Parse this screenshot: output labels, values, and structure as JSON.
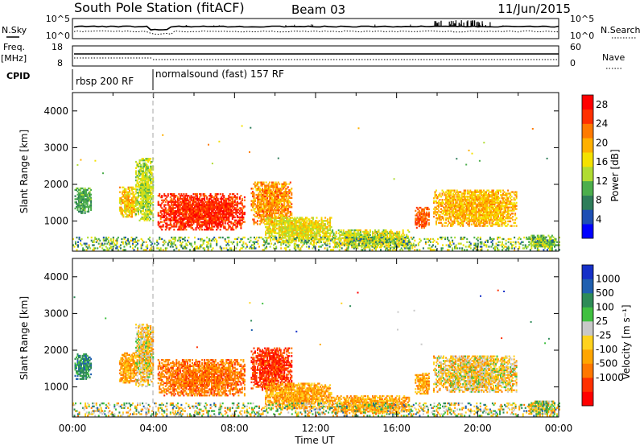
{
  "header": {
    "station": "South Pole Station (fitACF)",
    "beam": "Beam 03",
    "date": "11/Jun/2015"
  },
  "summary": {
    "nsky_label": "N.Sky",
    "nsky_top": "10^5",
    "nsky_bottom": "10^0",
    "nsearch_label": "N.Search",
    "nsearch_top": "10^5",
    "nsearch_bottom": "10^0",
    "freq_label": "Freq.",
    "freq_unit": "[MHz]",
    "freq_top": "18",
    "freq_bottom": "8",
    "nave_label": "Nave",
    "nave_top": "60",
    "nave_bottom": "0",
    "cpid_label": "CPID",
    "cpid_segments": [
      {
        "label": "rbsp 200 RF",
        "start_hour": 0
      },
      {
        "label": "normalsound (fast) 157 RF",
        "start_hour": 4
      }
    ]
  },
  "colors": {
    "power": [
      "#0000ff",
      "#1e4fb4",
      "#2e7d5a",
      "#4cae4c",
      "#b0dc32",
      "#f4e100",
      "#ffb000",
      "#ff7a00",
      "#ff3000",
      "#ff0000"
    ],
    "velocity": [
      "#1530c8",
      "#2060b0",
      "#2e8b57",
      "#40c040",
      "#c8c8c8",
      "#ffd21e",
      "#ffa500",
      "#ff7800",
      "#ff3000",
      "#ff0000"
    ]
  },
  "chart_data": [
    {
      "type": "heatmap",
      "name": "power",
      "ylabel": "Slant Range [km]",
      "xlim": [
        0,
        24
      ],
      "ylim": [
        180,
        4500
      ],
      "yticks": [
        "1000",
        "2000",
        "3000",
        "4000"
      ],
      "colorbar": {
        "label": "Power [dB]",
        "ticks": [
          "4",
          "8",
          "12",
          "16",
          "20",
          "24",
          "28"
        ],
        "range": [
          0,
          30
        ]
      },
      "regions": [
        {
          "t": [
            0.1,
            0.9
          ],
          "r": [
            1200,
            1900
          ],
          "v": 10,
          "spread": 5
        },
        {
          "t": [
            2.3,
            3.1
          ],
          "r": [
            1100,
            1900
          ],
          "v": 18,
          "spread": 8
        },
        {
          "t": [
            3.1,
            4.0
          ],
          "r": [
            1000,
            2700
          ],
          "v": 14,
          "spread": 8
        },
        {
          "t": [
            4.2,
            8.5
          ],
          "r": [
            750,
            1750
          ],
          "v": 26,
          "spread": 6
        },
        {
          "t": [
            8.8,
            10.8
          ],
          "r": [
            900,
            2050
          ],
          "v": 21,
          "spread": 8
        },
        {
          "t": [
            9.5,
            12.8
          ],
          "r": [
            400,
            1100
          ],
          "v": 16,
          "spread": 8
        },
        {
          "t": [
            12.8,
            16.6
          ],
          "r": [
            270,
            750
          ],
          "v": 15,
          "spread": 9
        },
        {
          "t": [
            16.9,
            17.6
          ],
          "r": [
            800,
            1350
          ],
          "v": 24,
          "spread": 6
        },
        {
          "t": [
            17.8,
            21.9
          ],
          "r": [
            850,
            1850
          ],
          "v": 19,
          "spread": 8
        },
        {
          "t": [
            22.5,
            23.8
          ],
          "r": [
            250,
            600
          ],
          "v": 12,
          "spread": 7
        },
        {
          "t": [
            0.0,
            24.0
          ],
          "r": [
            200,
            560
          ],
          "v": 12,
          "spread": 14
        }
      ]
    },
    {
      "type": "heatmap",
      "name": "velocity",
      "ylabel": "Slant Range [km]",
      "xlabel": "Time UT",
      "xlim": [
        0,
        24
      ],
      "ylim": [
        180,
        4500
      ],
      "xticks": [
        "00:00",
        "04:00",
        "08:00",
        "12:00",
        "16:00",
        "20:00",
        "00:00"
      ],
      "yticks": [
        "1000",
        "2000",
        "3000",
        "4000"
      ],
      "colorbar": {
        "label": "Velocity [m s⁻¹]",
        "ticks": [
          "1000",
          "500",
          "100",
          "25",
          "-25",
          "-100",
          "-500",
          "-1000"
        ]
      },
      "regions": [
        {
          "t": [
            0.1,
            0.9
          ],
          "r": [
            1200,
            1900
          ],
          "v": 2,
          "spread": 2
        },
        {
          "t": [
            2.3,
            3.1
          ],
          "r": [
            1100,
            1900
          ],
          "v": 6,
          "spread": 3
        },
        {
          "t": [
            3.1,
            4.0
          ],
          "r": [
            1000,
            2700
          ],
          "v": 5,
          "spread": 4
        },
        {
          "t": [
            4.2,
            8.5
          ],
          "r": [
            750,
            1750
          ],
          "v": 7,
          "spread": 2
        },
        {
          "t": [
            8.8,
            10.8
          ],
          "r": [
            900,
            2050
          ],
          "v": 8,
          "spread": 2
        },
        {
          "t": [
            9.5,
            12.8
          ],
          "r": [
            400,
            1100
          ],
          "v": 6,
          "spread": 3
        },
        {
          "t": [
            12.8,
            16.6
          ],
          "r": [
            270,
            750
          ],
          "v": 6,
          "spread": 3
        },
        {
          "t": [
            16.9,
            17.6
          ],
          "r": [
            800,
            1350
          ],
          "v": 6,
          "spread": 3
        },
        {
          "t": [
            17.8,
            21.9
          ],
          "r": [
            850,
            1850
          ],
          "v": 5,
          "spread": 4
        },
        {
          "t": [
            22.5,
            23.8
          ],
          "r": [
            250,
            600
          ],
          "v": 4,
          "spread": 4
        },
        {
          "t": [
            0.0,
            24.0
          ],
          "r": [
            200,
            560
          ],
          "v": 4,
          "spread": 6
        }
      ]
    }
  ]
}
